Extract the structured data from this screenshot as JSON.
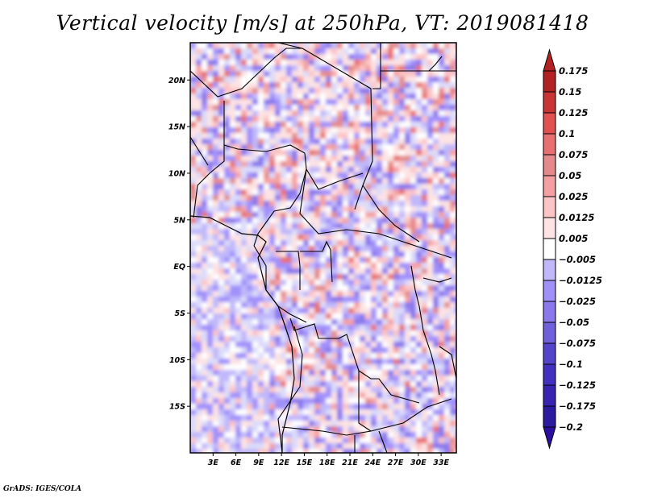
{
  "title": "Vertical velocity [m/s] at 250hPa, VT: 2019081418",
  "footer": "GrADS: IGES/COLA",
  "chart_data": {
    "type": "heatmap",
    "title": "Vertical velocity [m/s] at 250hPa, VT: 2019081418",
    "variable": "Vertical velocity",
    "units": "m/s",
    "level": "250hPa",
    "valid_time": "2019081418",
    "projection": "lat-lon map of Central Africa",
    "xlim": [
      0,
      35
    ],
    "ylim": [
      -20,
      24
    ],
    "x_ticks": [
      {
        "value": 3,
        "label": "3E"
      },
      {
        "value": 6,
        "label": "6E"
      },
      {
        "value": 9,
        "label": "9E"
      },
      {
        "value": 12,
        "label": "12E"
      },
      {
        "value": 15,
        "label": "15E"
      },
      {
        "value": 18,
        "label": "18E"
      },
      {
        "value": 21,
        "label": "21E"
      },
      {
        "value": 24,
        "label": "24E"
      },
      {
        "value": 27,
        "label": "27E"
      },
      {
        "value": 30,
        "label": "30E"
      },
      {
        "value": 33,
        "label": "33E"
      }
    ],
    "y_ticks": [
      {
        "value": 20,
        "label": "20N"
      },
      {
        "value": 15,
        "label": "15N"
      },
      {
        "value": 10,
        "label": "10N"
      },
      {
        "value": 5,
        "label": "5N"
      },
      {
        "value": 0,
        "label": "EQ"
      },
      {
        "value": -5,
        "label": "5S"
      },
      {
        "value": -10,
        "label": "10S"
      },
      {
        "value": -15,
        "label": "15S"
      }
    ],
    "colorbar": {
      "orientation": "vertical",
      "placement": "right",
      "extend": "both",
      "levels": [
        {
          "label": "0.175",
          "color": "#b22222"
        },
        {
          "label": "0.15",
          "color": "#c93535"
        },
        {
          "label": "0.125",
          "color": "#e35050"
        },
        {
          "label": "0.1",
          "color": "#e87070"
        },
        {
          "label": "0.075",
          "color": "#e48a8a"
        },
        {
          "label": "0.05",
          "color": "#f5a0a0"
        },
        {
          "label": "0.025",
          "color": "#fcc4c4"
        },
        {
          "label": "0.0125",
          "color": "#fde3e3"
        },
        {
          "label": "0.005",
          "color": "#ffffff"
        },
        {
          "label": "-0.005",
          "color": "#dcdcfa"
        },
        {
          "label": "-0.0125",
          "color": "#c0b8fa"
        },
        {
          "label": "-0.025",
          "color": "#a090fa"
        },
        {
          "label": "-0.05",
          "color": "#8a78ec"
        },
        {
          "label": "-0.075",
          "color": "#7060dc"
        },
        {
          "label": "-0.1",
          "color": "#5444cc"
        },
        {
          "label": "-0.125",
          "color": "#4430c0"
        },
        {
          "label": "-0.175",
          "color": "#3824b0"
        },
        {
          "label": "-0.2",
          "color": "#2c1aa0"
        }
      ],
      "top_extend_color": "#b22222",
      "bottom_extend_color": "#2c0ea0"
    },
    "grid": false,
    "legend": "right"
  }
}
